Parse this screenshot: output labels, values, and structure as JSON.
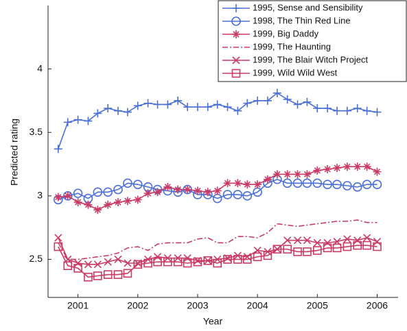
{
  "chart_data": {
    "type": "line",
    "xlabel": "Year",
    "ylabel": "Predicted rating",
    "xlim": [
      2000.5,
      2006.35
    ],
    "ylim": [
      2.2,
      4.5
    ],
    "xticks": [
      2001,
      2002,
      2003,
      2004,
      2005,
      2006
    ],
    "yticks": [
      2.5,
      3,
      3.5,
      4
    ],
    "legend": "upper right",
    "x": [
      2000.67,
      2000.83,
      2001.0,
      2001.17,
      2001.33,
      2001.5,
      2001.67,
      2001.83,
      2002.0,
      2002.17,
      2002.33,
      2002.5,
      2002.67,
      2002.83,
      2003.0,
      2003.17,
      2003.33,
      2003.5,
      2003.67,
      2003.83,
      2004.0,
      2004.17,
      2004.33,
      2004.5,
      2004.67,
      2004.83,
      2005.0,
      2005.17,
      2005.33,
      2005.5,
      2005.67,
      2005.83,
      2006.0
    ],
    "series": [
      {
        "name": "1995, Sense and Sensibility",
        "color": "#4a6fd8",
        "marker": "plus",
        "linestyle": "solid",
        "values": [
          3.37,
          3.58,
          3.6,
          3.59,
          3.65,
          3.69,
          3.67,
          3.66,
          3.71,
          3.73,
          3.72,
          3.72,
          3.75,
          3.7,
          3.7,
          3.7,
          3.72,
          3.7,
          3.67,
          3.73,
          3.75,
          3.75,
          3.81,
          3.76,
          3.72,
          3.74,
          3.69,
          3.69,
          3.67,
          3.67,
          3.69,
          3.67,
          3.66
        ]
      },
      {
        "name": "1998, The Thin Red Line",
        "color": "#4a6fd8",
        "marker": "circle",
        "linestyle": "solid",
        "values": [
          2.97,
          3.0,
          3.02,
          2.98,
          3.03,
          3.03,
          3.05,
          3.1,
          3.09,
          3.07,
          3.05,
          3.04,
          3.03,
          3.05,
          3.01,
          3.01,
          2.98,
          3.01,
          3.01,
          3.0,
          3.03,
          3.1,
          3.13,
          3.1,
          3.1,
          3.1,
          3.1,
          3.09,
          3.09,
          3.08,
          3.07,
          3.09,
          3.09
        ]
      },
      {
        "name": "1999, Big Daddy",
        "color": "#c93a64",
        "marker": "asterisk",
        "linestyle": "solid",
        "values": [
          2.99,
          3.0,
          2.95,
          2.93,
          2.89,
          2.93,
          2.95,
          2.96,
          2.97,
          3.02,
          3.03,
          3.07,
          3.05,
          3.05,
          3.04,
          3.03,
          3.04,
          3.1,
          3.1,
          3.09,
          3.09,
          3.13,
          3.17,
          3.17,
          3.17,
          3.17,
          3.2,
          3.21,
          3.22,
          3.23,
          3.23,
          3.23,
          3.19
        ]
      },
      {
        "name": "1999, The Haunting",
        "color": "#c93a64",
        "marker": "none",
        "linestyle": "dashdot",
        "values": [
          2.63,
          2.5,
          2.5,
          2.51,
          2.52,
          2.53,
          2.55,
          2.59,
          2.6,
          2.57,
          2.62,
          2.63,
          2.63,
          2.63,
          2.66,
          2.67,
          2.63,
          2.63,
          2.68,
          2.68,
          2.67,
          2.71,
          2.78,
          2.77,
          2.76,
          2.77,
          2.78,
          2.79,
          2.8,
          2.8,
          2.81,
          2.79,
          2.79
        ]
      },
      {
        "name": "1999, The Blair Witch Project",
        "color": "#c93a64",
        "marker": "x",
        "linestyle": "solid",
        "values": [
          2.67,
          2.5,
          2.47,
          2.46,
          2.46,
          2.48,
          2.5,
          2.47,
          2.47,
          2.5,
          2.52,
          2.51,
          2.51,
          2.51,
          2.49,
          2.49,
          2.5,
          2.51,
          2.53,
          2.52,
          2.57,
          2.56,
          2.58,
          2.65,
          2.65,
          2.65,
          2.63,
          2.63,
          2.64,
          2.66,
          2.65,
          2.67,
          2.64
        ]
      },
      {
        "name": "1999, Wild Wild West",
        "color": "#c93a64",
        "marker": "square",
        "linestyle": "solid",
        "values": [
          2.6,
          2.45,
          2.43,
          2.36,
          2.37,
          2.38,
          2.38,
          2.39,
          2.46,
          2.47,
          2.48,
          2.48,
          2.48,
          2.47,
          2.48,
          2.49,
          2.47,
          2.5,
          2.5,
          2.5,
          2.52,
          2.53,
          2.58,
          2.58,
          2.56,
          2.56,
          2.57,
          2.59,
          2.59,
          2.6,
          2.61,
          2.61,
          2.6
        ]
      }
    ]
  }
}
